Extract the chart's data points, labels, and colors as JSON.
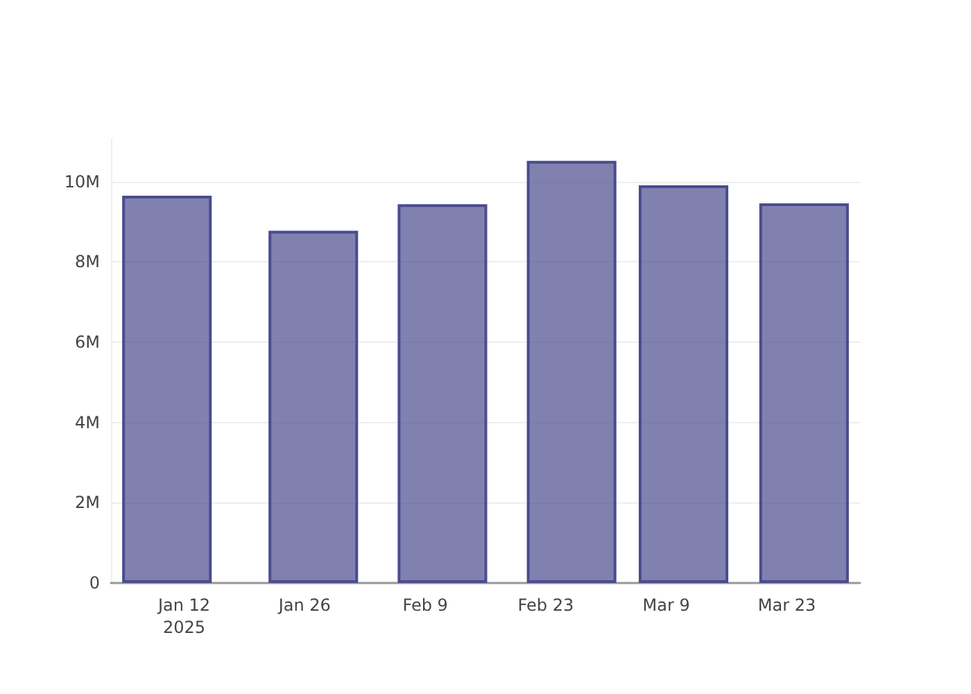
{
  "chart_data": {
    "type": "bar",
    "x": [
      "2025-01-10",
      "2025-01-27",
      "2025-02-11",
      "2025-02-26",
      "2025-03-11",
      "2025-03-25"
    ],
    "values": [
      9650000,
      8780000,
      9440000,
      10520000,
      9910000,
      9460000
    ],
    "color": "#4b4b8f",
    "xlim": [
      "2025-01-03T12:00",
      "2025-03-31T12:00"
    ],
    "xticks": [
      {
        "value": "2025-01-12",
        "label": "Jan 12\n2025"
      },
      {
        "value": "2025-01-26",
        "label": "Jan 26"
      },
      {
        "value": "2025-02-09",
        "label": "Feb 9"
      },
      {
        "value": "2025-02-23",
        "label": "Feb 23"
      },
      {
        "value": "2025-03-09",
        "label": "Mar 9"
      },
      {
        "value": "2025-03-23",
        "label": "Mar 23"
      }
    ],
    "ylim": [
      0,
      11070000
    ],
    "yticks": [
      {
        "value": 0,
        "label": "0"
      },
      {
        "value": 2000000,
        "label": "2M"
      },
      {
        "value": 4000000,
        "label": "4M"
      },
      {
        "value": 6000000,
        "label": "6M"
      },
      {
        "value": 8000000,
        "label": "8M"
      },
      {
        "value": 10000000,
        "label": "10M"
      }
    ],
    "grid": "y"
  }
}
